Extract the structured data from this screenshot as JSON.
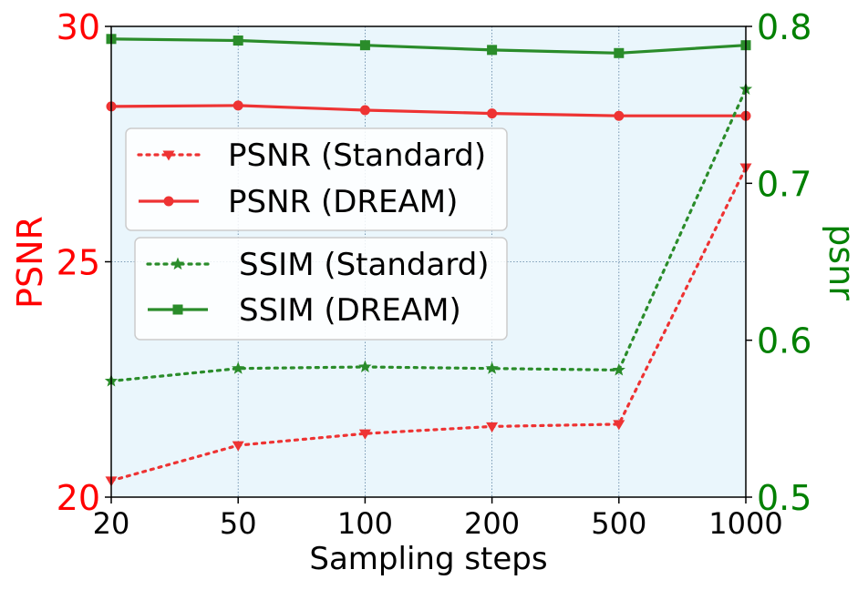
{
  "chart_data": {
    "type": "line",
    "xlabel": "Sampling steps",
    "ylabel_left": "PSNR",
    "ylabel_right": "psnr",
    "categories": [
      "20",
      "50",
      "100",
      "200",
      "500",
      "1000"
    ],
    "ylim_left": [
      20,
      30
    ],
    "ylim_right": [
      0.5,
      0.8
    ],
    "yticks_left": [
      "20",
      "25",
      "30"
    ],
    "yticks_right": [
      "0.5",
      "0.6",
      "0.7",
      "0.8"
    ],
    "grid": true,
    "series": [
      {
        "name": "PSNR (Standard)",
        "axis": "left",
        "values": [
          20.35,
          21.1,
          21.35,
          21.5,
          21.55,
          27.0
        ]
      },
      {
        "name": "PSNR (DREAM)",
        "axis": "left",
        "values": [
          28.3,
          28.32,
          28.22,
          28.15,
          28.1,
          28.1
        ]
      },
      {
        "name": "SSIM (Standard)",
        "axis": "right",
        "values": [
          0.574,
          0.582,
          0.583,
          0.582,
          0.581,
          0.76
        ]
      },
      {
        "name": "SSIM (DREAM)",
        "axis": "right",
        "values": [
          0.792,
          0.791,
          0.788,
          0.785,
          0.783,
          0.788
        ]
      }
    ],
    "colors": {
      "left_axis": "#ff0000",
      "right_axis": "#008000",
      "psnr_series": "#ee3333",
      "ssim_series": "#2a8c2a",
      "plot_background": "#eaf6fc"
    },
    "legend_placement": [
      "upper-left",
      "center-left"
    ]
  }
}
